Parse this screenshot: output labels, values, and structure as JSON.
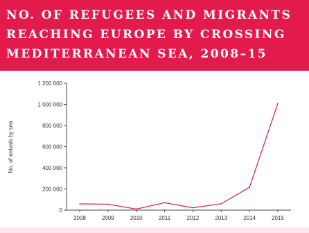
{
  "header": {
    "title": "NO. OF REFUGEES AND MIGRANTS\nREACHING EUROPE BY CROSSING\nMEDITERRANEAN SEA, 2008–15"
  },
  "colors": {
    "banner": "#e31b4d",
    "line": "#d6194a",
    "axis": "#444444",
    "footer_band": "#fbe6eb"
  },
  "chart_data": {
    "type": "line",
    "title": "NO. OF REFUGEES AND MIGRANTS REACHING EUROPE BY CROSSING MEDITERRANEAN SEA, 2008–15",
    "xlabel": "",
    "ylabel": "No. of arrivals by sea",
    "categories": [
      "2008",
      "2009",
      "2010",
      "2011",
      "2012",
      "2013",
      "2014",
      "2015"
    ],
    "values": [
      59000,
      56000,
      10000,
      70000,
      22000,
      60000,
      216000,
      1008000
    ],
    "ylim": [
      0,
      1200000
    ],
    "yticks": [
      0,
      200000,
      400000,
      600000,
      800000,
      1000000,
      1200000
    ],
    "ytick_labels": [
      "0",
      "200 000",
      "400 000",
      "600 000",
      "800 000",
      "1 000 000",
      "1 200 000"
    ],
    "grid": false,
    "legend": "none"
  }
}
